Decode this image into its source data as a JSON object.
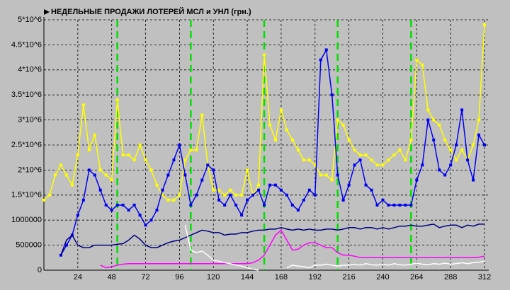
{
  "chart_data": {
    "type": "line",
    "title": "НЕДЕЛЬНЫЕ ПРОДАЖИ ЛОТЕРЕЙ МСЛ и УНЛ (грн.)",
    "x": [
      0,
      4,
      8,
      12,
      16,
      20,
      24,
      28,
      32,
      36,
      40,
      44,
      48,
      52,
      56,
      60,
      64,
      68,
      72,
      76,
      80,
      84,
      88,
      92,
      96,
      100,
      104,
      108,
      112,
      116,
      120,
      124,
      128,
      132,
      136,
      140,
      144,
      148,
      152,
      156,
      160,
      164,
      168,
      172,
      176,
      180,
      184,
      188,
      192,
      196,
      200,
      204,
      208,
      212,
      216,
      220,
      224,
      228,
      232,
      236,
      240,
      244,
      248,
      252,
      256,
      260,
      264,
      268,
      272,
      276,
      280,
      284,
      288,
      292,
      296,
      300,
      304,
      308,
      312
    ],
    "series": [
      {
        "color": "#ffff00",
        "markers": true,
        "values": [
          1400000.0,
          1500000.0,
          1900000.0,
          2100000.0,
          1900000.0,
          1700000.0,
          2300000.0,
          3300000.0,
          2400000.0,
          2700000.0,
          2000000.0,
          1900000.0,
          1800000.0,
          3400000.0,
          2300000.0,
          2300000.0,
          2200000.0,
          2500000.0,
          2200000.0,
          2000000.0,
          1700000.0,
          1500000.0,
          1400000.0,
          1400000.0,
          1500000.0,
          2200000.0,
          2400000.0,
          2400000.0,
          3100000.0,
          2100000.0,
          1600000.0,
          1600000.0,
          1500000.0,
          1600000.0,
          1500000.0,
          1500000.0,
          2000000.0,
          1500000.0,
          1700000.0,
          4300000.0,
          2900000.0,
          2600000.0,
          3200000.0,
          2800000.0,
          2600000.0,
          2400000.0,
          2200000.0,
          2200000.0,
          2100000.0,
          1900000.0,
          1900000.0,
          1800000.0,
          3000000.0,
          2900000.0,
          2600000.0,
          2400000.0,
          2300000.0,
          2300000.0,
          2200000.0,
          2100000.0,
          2100000.0,
          2200000.0,
          2300000.0,
          2400000.0,
          2200000.0,
          2600000.0,
          4200000.0,
          4100000.0,
          3200000.0,
          3000000.0,
          2900000.0,
          2600000.0,
          2400000.0,
          2200000.0,
          2400000.0,
          2200000.0,
          2500000.0,
          3000000.0,
          4900000.0
        ]
      },
      {
        "color": "#0000f0",
        "markers": true,
        "values": [
          null,
          null,
          null,
          300000.0,
          500000.0,
          700000.0,
          1100000.0,
          1400000.0,
          2000000.0,
          1900000.0,
          1600000.0,
          1300000.0,
          1200000.0,
          1300000.0,
          1300000.0,
          1200000.0,
          1300000.0,
          1100000.0,
          900000.0,
          1000000.0,
          1200000.0,
          1600000.0,
          1900000.0,
          2200000.0,
          2500000.0,
          1900000.0,
          1300000.0,
          1500000.0,
          1800000.0,
          2100000.0,
          2000000.0,
          1400000.0,
          1300000.0,
          1500000.0,
          1300000.0,
          1100000.0,
          1400000.0,
          1500000.0,
          1600000.0,
          1300000.0,
          1700000.0,
          1700000.0,
          1600000.0,
          1500000.0,
          1300000.0,
          1200000.0,
          1400000.0,
          1600000.0,
          1500000.0,
          4200000.0,
          4400000.0,
          3500000.0,
          1900000.0,
          1400000.0,
          1700000.0,
          2100000.0,
          2200000.0,
          1700000.0,
          1600000.0,
          1300000.0,
          1400000.0,
          1300000.0,
          1300000.0,
          1300000.0,
          1300000.0,
          1300000.0,
          1800000.0,
          2100000.0,
          3000000.0,
          2600000.0,
          2000000.0,
          1900000.0,
          2100000.0,
          2500000.0,
          3200000.0,
          2200000.0,
          1800000.0,
          2700000.0,
          2500000.0
        ]
      },
      {
        "color": "#000080",
        "markers": false,
        "values": [
          null,
          null,
          null,
          300000.0,
          600000.0,
          700000.0,
          500000.0,
          450000.0,
          450000.0,
          500000.0,
          500000.0,
          500000.0,
          500000.0,
          520000.0,
          530000.0,
          600000.0,
          700000.0,
          620000.0,
          500000.0,
          450000.0,
          450000.0,
          500000.0,
          550000.0,
          580000.0,
          600000.0,
          650000.0,
          700000.0,
          750000.0,
          800000.0,
          780000.0,
          750000.0,
          750000.0,
          700000.0,
          720000.0,
          720000.0,
          750000.0,
          750000.0,
          780000.0,
          800000.0,
          800000.0,
          820000.0,
          820000.0,
          850000.0,
          820000.0,
          800000.0,
          820000.0,
          800000.0,
          820000.0,
          800000.0,
          800000.0,
          820000.0,
          820000.0,
          800000.0,
          820000.0,
          850000.0,
          850000.0,
          820000.0,
          850000.0,
          850000.0,
          820000.0,
          850000.0,
          820000.0,
          850000.0,
          880000.0,
          880000.0,
          900000.0,
          880000.0,
          880000.0,
          900000.0,
          920000.0,
          850000.0,
          880000.0,
          900000.0,
          900000.0,
          850000.0,
          900000.0,
          880000.0,
          920000.0,
          920000.0
        ]
      },
      {
        "color": "#ff00ff",
        "markers": false,
        "values": [
          null,
          null,
          null,
          null,
          null,
          null,
          null,
          null,
          null,
          null,
          100000.0,
          50000.0,
          70000.0,
          100000.0,
          120000.0,
          130000.0,
          130000.0,
          130000.0,
          130000.0,
          130000.0,
          130000.0,
          130000.0,
          130000.0,
          130000.0,
          130000.0,
          130000.0,
          130000.0,
          130000.0,
          130000.0,
          130000.0,
          130000.0,
          130000.0,
          130000.0,
          130000.0,
          130000.0,
          130000.0,
          130000.0,
          150000.0,
          200000.0,
          300000.0,
          500000.0,
          700000.0,
          800000.0,
          600000.0,
          400000.0,
          420000.0,
          500000.0,
          550000.0,
          550000.0,
          500000.0,
          450000.0,
          450000.0,
          350000.0,
          300000.0,
          300000.0,
          280000.0,
          250000.0,
          250000.0,
          250000.0,
          250000.0,
          250000.0,
          250000.0,
          250000.0,
          250000.0,
          250000.0,
          250000.0,
          250000.0,
          250000.0,
          250000.0,
          250000.0,
          250000.0,
          250000.0,
          250000.0,
          250000.0,
          250000.0,
          250000.0,
          250000.0,
          260000.0,
          280000.0
        ]
      },
      {
        "color": "#ffffff",
        "markers": false,
        "values": [
          null,
          null,
          null,
          null,
          null,
          null,
          null,
          null,
          null,
          null,
          null,
          null,
          null,
          null,
          null,
          null,
          null,
          null,
          null,
          null,
          null,
          null,
          null,
          null,
          null,
          900000.0,
          400000.0,
          350000.0,
          380000.0,
          300000.0,
          200000.0,
          180000.0,
          150000.0,
          130000.0,
          100000.0,
          80000.0,
          50000.0,
          20000.0,
          0,
          null,
          null,
          null,
          null,
          50000.0,
          100000.0,
          80000.0,
          70000.0,
          50000.0,
          100000.0,
          100000.0,
          120000.0,
          100000.0,
          80000.0,
          100000.0,
          100000.0,
          120000.0,
          100000.0,
          130000.0,
          110000.0,
          100000.0,
          120000.0,
          100000.0,
          130000.0,
          110000.0,
          100000.0,
          120000.0,
          140000.0,
          120000.0,
          110000.0,
          130000.0,
          120000.0,
          140000.0,
          120000.0,
          130000.0,
          150000.0,
          130000.0,
          150000.0,
          160000.0,
          180000.0
        ]
      }
    ],
    "vlines": [
      52,
      104,
      156,
      208,
      260
    ],
    "vline_color": "#00e000",
    "xlim": [
      0,
      315
    ],
    "ylim": [
      0,
      5000000
    ],
    "xticks": [
      24,
      48,
      72,
      96,
      120,
      144,
      168,
      192,
      216,
      240,
      264,
      288,
      312
    ],
    "yticks": [
      0,
      500000,
      1000000,
      {
        "value": 1500000,
        "label": "1.5*10^6"
      },
      {
        "value": 2000000,
        "label": "2*10^6"
      },
      {
        "value": 2500000,
        "label": "2.5*10^6"
      },
      {
        "value": 3000000,
        "label": "3*10^6"
      },
      {
        "value": 3500000,
        "label": "3.5*10^6"
      },
      {
        "value": 4000000,
        "label": "4*10^6"
      },
      {
        "value": 4500000,
        "label": "4.5*10^6"
      },
      {
        "value": 5000000,
        "label": "5*10^6"
      }
    ],
    "grid": true
  }
}
